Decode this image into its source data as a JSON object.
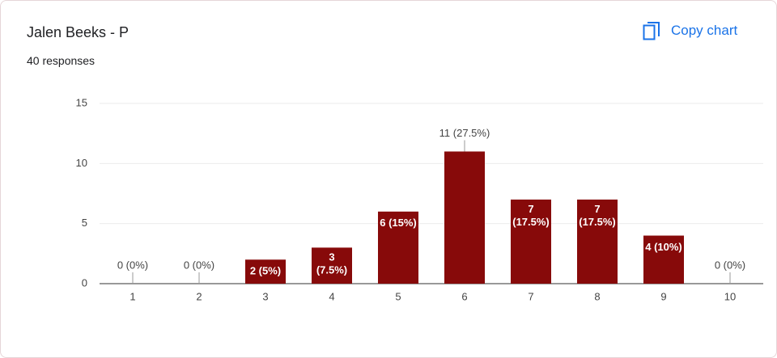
{
  "header": {
    "title": "Jalen Beeks - P",
    "subtitle": "40 responses",
    "action": "Copy chart"
  },
  "chart_data": {
    "type": "bar",
    "categories": [
      "1",
      "2",
      "3",
      "4",
      "5",
      "6",
      "7",
      "8",
      "9",
      "10"
    ],
    "values": [
      0,
      0,
      2,
      3,
      6,
      11,
      7,
      7,
      4,
      0
    ],
    "value_labels": [
      "0 (0%)",
      "0 (0%)",
      "2 (5%)",
      "3 (7.5%)",
      "6 (15%)",
      "11 (27.5%)",
      "7 (17.5%)",
      "7 (17.5%)",
      "4 (10%)",
      "0 (0%)"
    ],
    "color": "#870a0a",
    "ylim": [
      0,
      15
    ],
    "yticks": [
      0,
      5,
      10,
      15
    ],
    "grid": true
  }
}
